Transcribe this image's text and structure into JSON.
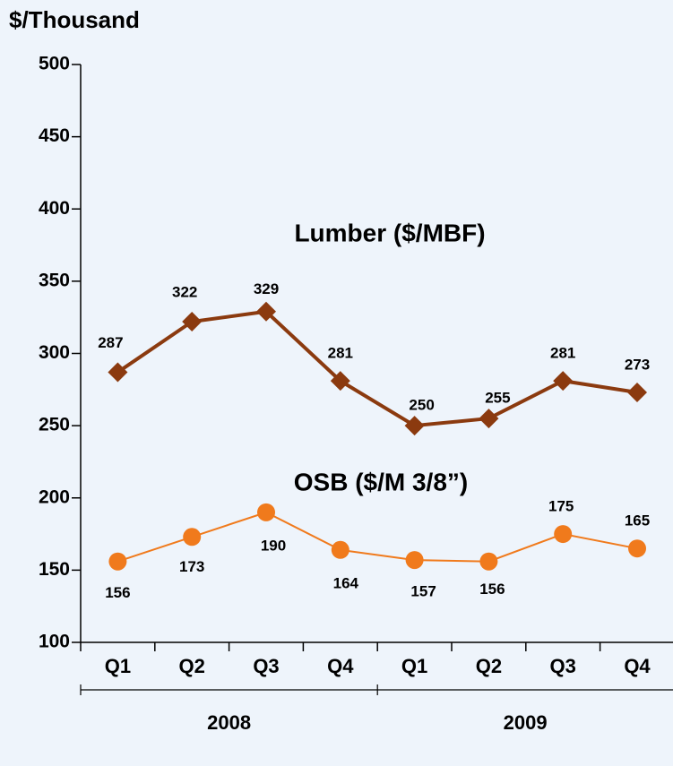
{
  "chart_data": {
    "type": "line",
    "y_axis_label": "$/Thousand",
    "categories": [
      "Q1",
      "Q2",
      "Q3",
      "Q4",
      "Q1",
      "Q2",
      "Q3",
      "Q4"
    ],
    "x_groups": [
      "2008",
      "2009"
    ],
    "series": [
      {
        "name": "Lumber ($/MBF)",
        "color": "#8b3a0f",
        "marker": "diamond",
        "values": [
          287,
          322,
          329,
          281,
          250,
          255,
          281,
          273
        ]
      },
      {
        "name": "OSB ($/M 3/8”)",
        "color": "#f07a1c",
        "marker": "circle",
        "values": [
          156,
          173,
          190,
          164,
          157,
          156,
          175,
          165
        ]
      }
    ],
    "ylim": [
      100,
      500
    ],
    "yticks": [
      100,
      150,
      200,
      250,
      300,
      350,
      400,
      450,
      500
    ],
    "grid": false
  }
}
